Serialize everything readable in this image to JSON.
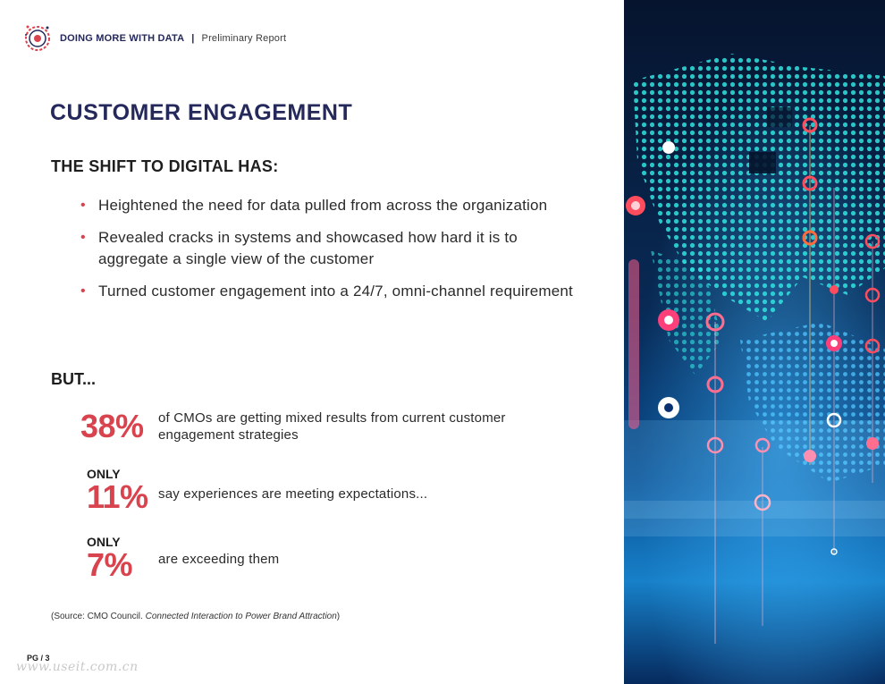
{
  "header": {
    "title": "DOING MORE WITH DATA",
    "separator": "|",
    "subtitle": "Preliminary Report"
  },
  "page_title": "CUSTOMER ENGAGEMENT",
  "shift": {
    "heading": "THE SHIFT TO DIGITAL HAS:",
    "bullets": [
      "Heightened the need for data pulled from across the organization",
      "Revealed cracks in systems and showcased how hard it is to aggregate a single view of the customer",
      "Turned customer engagement into a 24/7, omni-channel requirement"
    ]
  },
  "but_heading": "BUT...",
  "stats": [
    {
      "prefix": "",
      "value": "38%",
      "text": "of CMOs are getting mixed results from current customer engagement strategies"
    },
    {
      "prefix": "ONLY",
      "value": "11%",
      "text": "say experiences are meeting expectations..."
    },
    {
      "prefix": "ONLY",
      "value": "7%",
      "text": "are exceeding them"
    }
  ],
  "source": {
    "prefix": "(Source: CMO Council. ",
    "title": "Connected Interaction to Power Brand Attraction",
    "suffix": ")"
  },
  "page_number": "PG / 3",
  "watermark": "www.useit.com.cn",
  "colors": {
    "navy": "#24285a",
    "accent_red": "#d9434e",
    "image_dark": "#06142e",
    "image_cyan": "#2fe3e0"
  }
}
